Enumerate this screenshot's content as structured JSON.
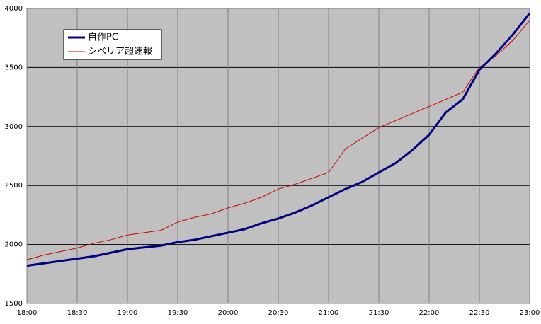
{
  "chart_data": {
    "type": "line",
    "x": [
      "18:00",
      "18:10",
      "18:20",
      "18:30",
      "18:40",
      "18:50",
      "19:00",
      "19:10",
      "19:20",
      "19:30",
      "19:40",
      "19:50",
      "20:00",
      "20:10",
      "20:20",
      "20:30",
      "20:40",
      "20:50",
      "21:00",
      "21:10",
      "21:20",
      "21:30",
      "21:40",
      "21:50",
      "22:00",
      "22:10",
      "22:20",
      "22:30",
      "22:40",
      "22:50",
      "23:00"
    ],
    "series": [
      {
        "name": "自作PC",
        "color": "#000080",
        "width": 3,
        "values": [
          1820,
          1840,
          1860,
          1880,
          1900,
          1930,
          1960,
          1975,
          1990,
          2020,
          2040,
          2070,
          2100,
          2130,
          2180,
          2220,
          2270,
          2330,
          2400,
          2470,
          2530,
          2610,
          2690,
          2800,
          2930,
          3120,
          3230,
          3480,
          3620,
          3780,
          3960
        ]
      },
      {
        "name": "シベリア超速報",
        "color": "#cc0000",
        "width": 1,
        "values": [
          1870,
          1910,
          1940,
          1970,
          2010,
          2040,
          2080,
          2100,
          2120,
          2190,
          2230,
          2260,
          2310,
          2350,
          2400,
          2470,
          2510,
          2560,
          2610,
          2810,
          2900,
          2990,
          3050,
          3110,
          3170,
          3230,
          3290,
          3500,
          3600,
          3730,
          3900
        ]
      }
    ],
    "xlim": [
      "18:00",
      "23:00"
    ],
    "xticks": [
      "18:00",
      "18:30",
      "19:00",
      "19:30",
      "20:00",
      "20:30",
      "21:00",
      "21:30",
      "22:00",
      "22:30",
      "23:00"
    ],
    "ylim": [
      1500,
      4000
    ],
    "yticks": [
      1500,
      2000,
      2500,
      3000,
      3500,
      4000
    ],
    "grid": true,
    "legend": "top-left"
  }
}
